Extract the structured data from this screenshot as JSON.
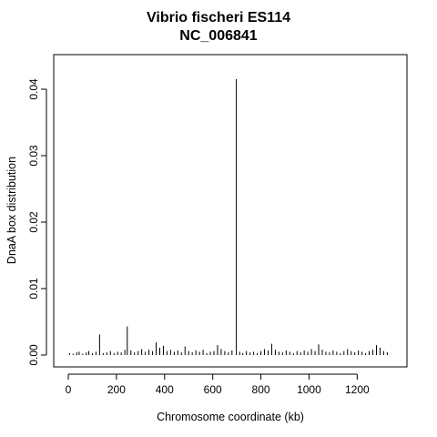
{
  "chart_data": {
    "type": "bar",
    "title_line1": "Vibrio fischeri ES114",
    "title_line2": "NC_006841",
    "xlabel": "Chromosome coordinate (kb)",
    "ylabel": "DnaA box distribution",
    "xlim": [
      0,
      1350
    ],
    "ylim": [
      0,
      0.042
    ],
    "x_ticks": [
      0,
      200,
      400,
      600,
      800,
      1000,
      1200
    ],
    "y_ticks": [
      0.0,
      0.01,
      0.02,
      0.03,
      0.04
    ],
    "y_tick_labels": [
      "0.00",
      "0.01",
      "0.02",
      "0.03",
      "0.04"
    ],
    "grid": false,
    "bars": [
      {
        "x": 5,
        "y": 0.0003
      },
      {
        "x": 20,
        "y": 0.0002
      },
      {
        "x": 35,
        "y": 0.0004
      },
      {
        "x": 45,
        "y": 0.0005
      },
      {
        "x": 60,
        "y": 0.0002
      },
      {
        "x": 75,
        "y": 0.0004
      },
      {
        "x": 85,
        "y": 0.0006
      },
      {
        "x": 100,
        "y": 0.0003
      },
      {
        "x": 115,
        "y": 0.0005
      },
      {
        "x": 130,
        "y": 0.0031
      },
      {
        "x": 145,
        "y": 0.0003
      },
      {
        "x": 160,
        "y": 0.0004
      },
      {
        "x": 175,
        "y": 0.0006
      },
      {
        "x": 190,
        "y": 0.0003
      },
      {
        "x": 205,
        "y": 0.0005
      },
      {
        "x": 220,
        "y": 0.0004
      },
      {
        "x": 235,
        "y": 0.0008
      },
      {
        "x": 245,
        "y": 0.0043
      },
      {
        "x": 260,
        "y": 0.0007
      },
      {
        "x": 275,
        "y": 0.0004
      },
      {
        "x": 290,
        "y": 0.0006
      },
      {
        "x": 305,
        "y": 0.0009
      },
      {
        "x": 320,
        "y": 0.0005
      },
      {
        "x": 335,
        "y": 0.0008
      },
      {
        "x": 350,
        "y": 0.0006
      },
      {
        "x": 365,
        "y": 0.0019
      },
      {
        "x": 380,
        "y": 0.0011
      },
      {
        "x": 395,
        "y": 0.0014
      },
      {
        "x": 410,
        "y": 0.0006
      },
      {
        "x": 425,
        "y": 0.0008
      },
      {
        "x": 440,
        "y": 0.0005
      },
      {
        "x": 455,
        "y": 0.0007
      },
      {
        "x": 470,
        "y": 0.0004
      },
      {
        "x": 485,
        "y": 0.0013
      },
      {
        "x": 500,
        "y": 0.0006
      },
      {
        "x": 515,
        "y": 0.0004
      },
      {
        "x": 530,
        "y": 0.0007
      },
      {
        "x": 545,
        "y": 0.0005
      },
      {
        "x": 560,
        "y": 0.0008
      },
      {
        "x": 575,
        "y": 0.0003
      },
      {
        "x": 590,
        "y": 0.0005
      },
      {
        "x": 605,
        "y": 0.0006
      },
      {
        "x": 620,
        "y": 0.0015
      },
      {
        "x": 635,
        "y": 0.0009
      },
      {
        "x": 650,
        "y": 0.0006
      },
      {
        "x": 665,
        "y": 0.0004
      },
      {
        "x": 680,
        "y": 0.0007
      },
      {
        "x": 698,
        "y": 0.0415
      },
      {
        "x": 712,
        "y": 0.0005
      },
      {
        "x": 725,
        "y": 0.0003
      },
      {
        "x": 740,
        "y": 0.0006
      },
      {
        "x": 755,
        "y": 0.0004
      },
      {
        "x": 770,
        "y": 0.0005
      },
      {
        "x": 785,
        "y": 0.0003
      },
      {
        "x": 800,
        "y": 0.0006
      },
      {
        "x": 815,
        "y": 0.0009
      },
      {
        "x": 830,
        "y": 0.0007
      },
      {
        "x": 845,
        "y": 0.0017
      },
      {
        "x": 860,
        "y": 0.0008
      },
      {
        "x": 875,
        "y": 0.0005
      },
      {
        "x": 890,
        "y": 0.0004
      },
      {
        "x": 905,
        "y": 0.0007
      },
      {
        "x": 920,
        "y": 0.0005
      },
      {
        "x": 935,
        "y": 0.0003
      },
      {
        "x": 950,
        "y": 0.0006
      },
      {
        "x": 965,
        "y": 0.0004
      },
      {
        "x": 980,
        "y": 0.0007
      },
      {
        "x": 995,
        "y": 0.0005
      },
      {
        "x": 1010,
        "y": 0.0009
      },
      {
        "x": 1025,
        "y": 0.0006
      },
      {
        "x": 1040,
        "y": 0.0016
      },
      {
        "x": 1055,
        "y": 0.0008
      },
      {
        "x": 1070,
        "y": 0.0005
      },
      {
        "x": 1085,
        "y": 0.0004
      },
      {
        "x": 1100,
        "y": 0.0007
      },
      {
        "x": 1115,
        "y": 0.0005
      },
      {
        "x": 1130,
        "y": 0.0003
      },
      {
        "x": 1145,
        "y": 0.0006
      },
      {
        "x": 1160,
        "y": 0.0009
      },
      {
        "x": 1175,
        "y": 0.0006
      },
      {
        "x": 1190,
        "y": 0.0004
      },
      {
        "x": 1205,
        "y": 0.0007
      },
      {
        "x": 1220,
        "y": 0.0005
      },
      {
        "x": 1235,
        "y": 0.0003
      },
      {
        "x": 1250,
        "y": 0.0006
      },
      {
        "x": 1265,
        "y": 0.0008
      },
      {
        "x": 1280,
        "y": 0.0015
      },
      {
        "x": 1295,
        "y": 0.0011
      },
      {
        "x": 1310,
        "y": 0.0006
      },
      {
        "x": 1325,
        "y": 0.0004
      }
    ],
    "color": "#000000"
  }
}
